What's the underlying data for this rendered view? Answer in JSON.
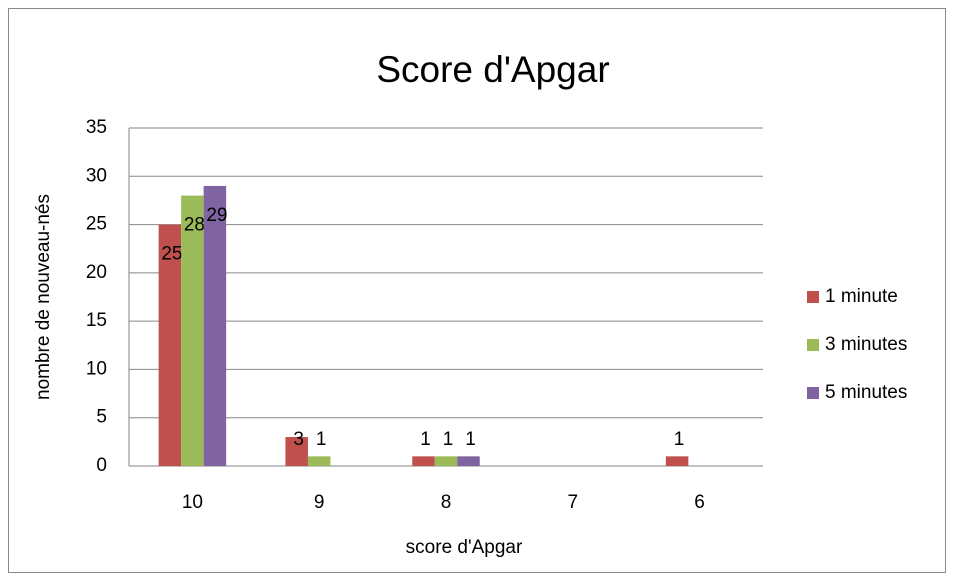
{
  "chart_data": {
    "type": "bar",
    "title": "Score d'Apgar",
    "x_label": "score d'Apgar",
    "y_label": "nombre de nouveau-nés",
    "categories": [
      "10",
      "9",
      "8",
      "7",
      "6"
    ],
    "series": [
      {
        "name": "1 minute",
        "color": "#c0504d",
        "values": [
          25,
          3,
          1,
          null,
          1
        ]
      },
      {
        "name": "3 minutes",
        "color": "#9bbb59",
        "values": [
          28,
          1,
          1,
          null,
          null
        ]
      },
      {
        "name": "5 minutes",
        "color": "#8064a2",
        "values": [
          29,
          null,
          1,
          null,
          null
        ]
      }
    ],
    "ylim": [
      0,
      35
    ],
    "yticks": [
      0,
      5,
      10,
      15,
      20,
      25,
      30,
      35
    ],
    "grid": true,
    "legend": "right",
    "data_labels": true
  }
}
